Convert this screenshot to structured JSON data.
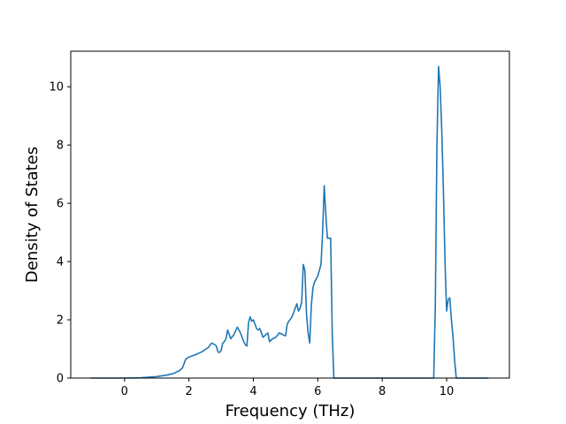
{
  "chart_data": {
    "type": "line",
    "title": "",
    "xlabel": "Frequency (THz)",
    "ylabel": "Density of States",
    "xlim": [
      -1.67,
      11.95
    ],
    "ylim": [
      0,
      11.22
    ],
    "xticks": [
      0,
      2,
      4,
      6,
      8,
      10
    ],
    "yticks": [
      0,
      2,
      4,
      6,
      8,
      10
    ],
    "grid": false,
    "legend": "none",
    "series": [
      {
        "color": "#1f77b4",
        "x": [
          -1.05,
          -0.5,
          0.0,
          0.5,
          1.0,
          1.3,
          1.5,
          1.7,
          1.8,
          1.85,
          1.9,
          2.0,
          2.2,
          2.4,
          2.6,
          2.7,
          2.8,
          2.85,
          2.9,
          2.95,
          3.0,
          3.05,
          3.1,
          3.15,
          3.2,
          3.3,
          3.4,
          3.5,
          3.6,
          3.7,
          3.75,
          3.8,
          3.85,
          3.9,
          3.95,
          4.0,
          4.05,
          4.1,
          4.15,
          4.2,
          4.3,
          4.35,
          4.4,
          4.45,
          4.5,
          4.6,
          4.7,
          4.8,
          4.9,
          4.95,
          5.0,
          5.05,
          5.1,
          5.2,
          5.3,
          5.35,
          5.4,
          5.45,
          5.5,
          5.55,
          5.6,
          5.65,
          5.7,
          5.75,
          5.8,
          5.85,
          5.9,
          6.0,
          6.1,
          6.15,
          6.2,
          6.25,
          6.3,
          6.4,
          6.45,
          6.5,
          6.55,
          7.0,
          8.0,
          9.0,
          9.6,
          9.65,
          9.7,
          9.75,
          9.8,
          9.85,
          9.9,
          9.95,
          10.0,
          10.05,
          10.1,
          10.15,
          10.2,
          10.25,
          10.3,
          10.5,
          11.0,
          11.3
        ],
        "y": [
          0.0,
          0.0,
          0.0,
          0.01,
          0.05,
          0.1,
          0.15,
          0.25,
          0.35,
          0.5,
          0.65,
          0.72,
          0.8,
          0.9,
          1.05,
          1.2,
          1.15,
          1.1,
          0.9,
          0.88,
          0.95,
          1.2,
          1.25,
          1.35,
          1.65,
          1.35,
          1.5,
          1.75,
          1.55,
          1.25,
          1.15,
          1.1,
          1.9,
          2.1,
          1.95,
          2.0,
          1.85,
          1.7,
          1.65,
          1.7,
          1.4,
          1.45,
          1.5,
          1.55,
          1.25,
          1.35,
          1.4,
          1.55,
          1.5,
          1.47,
          1.45,
          1.85,
          1.95,
          2.1,
          2.4,
          2.55,
          2.3,
          2.4,
          2.6,
          3.9,
          3.7,
          2.2,
          1.55,
          1.2,
          2.5,
          3.1,
          3.3,
          3.5,
          3.9,
          5.0,
          6.6,
          5.6,
          4.8,
          4.8,
          1.5,
          0.0,
          0.0,
          0.0,
          0.0,
          0.0,
          0.0,
          2.5,
          8.0,
          10.7,
          10.0,
          8.5,
          6.5,
          4.0,
          2.3,
          2.7,
          2.75,
          2.0,
          1.4,
          0.6,
          0.0,
          0.0,
          0.0,
          0.0
        ]
      }
    ]
  }
}
